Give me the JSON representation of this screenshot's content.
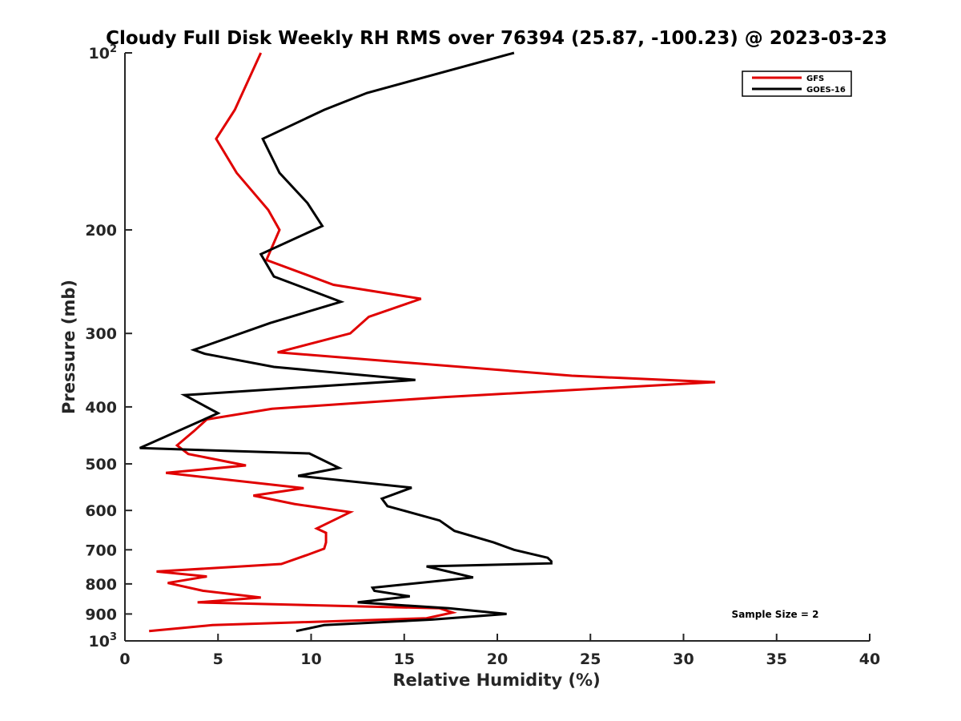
{
  "chart_data": {
    "type": "line",
    "title": "Cloudy Full Disk Weekly RH RMS over 76394 (25.87, -100.23) @ 2023-03-23",
    "xlabel": "Relative Humidity (%)",
    "ylabel": "Pressure (mb)",
    "xlim": [
      0,
      40
    ],
    "ylim": [
      1000,
      100
    ],
    "yscale": "log",
    "y_reversed": true,
    "x_ticks": [
      "0",
      "5",
      "10",
      "15",
      "20",
      "25",
      "30",
      "35",
      "40"
    ],
    "y_ticks": [
      {
        "value": 100,
        "label": "10",
        "sup": "2"
      },
      {
        "value": 200,
        "label": "200",
        "sup": ""
      },
      {
        "value": 300,
        "label": "300",
        "sup": ""
      },
      {
        "value": 400,
        "label": "400",
        "sup": ""
      },
      {
        "value": 500,
        "label": "500",
        "sup": ""
      },
      {
        "value": 600,
        "label": "600",
        "sup": ""
      },
      {
        "value": 700,
        "label": "700",
        "sup": ""
      },
      {
        "value": 800,
        "label": "800",
        "sup": ""
      },
      {
        "value": 900,
        "label": "900",
        "sup": ""
      },
      {
        "value": 1000,
        "label": "10",
        "sup": "3"
      }
    ],
    "grid": false,
    "legend_position": "top-right",
    "annotation": "Sample Size = 2",
    "series": [
      {
        "name": "GFS",
        "color": "#e00000",
        "points": [
          [
            7.3,
            100
          ],
          [
            5.9,
            125
          ],
          [
            4.9,
            140
          ],
          [
            6.0,
            160
          ],
          [
            7.7,
            185
          ],
          [
            8.3,
            200
          ],
          [
            7.6,
            225
          ],
          [
            11.2,
            248
          ],
          [
            15.9,
            262
          ],
          [
            13.1,
            281
          ],
          [
            12.1,
            300
          ],
          [
            8.2,
            323
          ],
          [
            24.0,
            354
          ],
          [
            31.7,
            363
          ],
          [
            17.1,
            385
          ],
          [
            7.9,
            403
          ],
          [
            4.4,
            420
          ],
          [
            3.7,
            440
          ],
          [
            2.8,
            465
          ],
          [
            3.4,
            481
          ],
          [
            6.5,
            503
          ],
          [
            2.2,
            518
          ],
          [
            9.6,
            550
          ],
          [
            6.9,
            566
          ],
          [
            9.1,
            585
          ],
          [
            12.1,
            604
          ],
          [
            10.3,
            644
          ],
          [
            10.8,
            655
          ],
          [
            10.8,
            680
          ],
          [
            10.7,
            697
          ],
          [
            9.8,
            714
          ],
          [
            8.4,
            740
          ],
          [
            1.7,
            762
          ],
          [
            4.4,
            777
          ],
          [
            2.3,
            797
          ],
          [
            4.2,
            822
          ],
          [
            7.3,
            844
          ],
          [
            3.9,
            860
          ],
          [
            16.9,
            880
          ],
          [
            17.6,
            895
          ],
          [
            16.2,
            915
          ],
          [
            4.7,
            940
          ],
          [
            1.3,
            962
          ]
        ]
      },
      {
        "name": "GOES-16",
        "color": "#000000",
        "points": [
          [
            20.9,
            100
          ],
          [
            13.0,
            117
          ],
          [
            10.7,
            125
          ],
          [
            7.4,
            140
          ],
          [
            8.3,
            160
          ],
          [
            9.8,
            180
          ],
          [
            10.6,
            197
          ],
          [
            7.3,
            220
          ],
          [
            8.0,
            240
          ],
          [
            11.6,
            265
          ],
          [
            7.8,
            288
          ],
          [
            3.7,
            320
          ],
          [
            4.3,
            325
          ],
          [
            8.0,
            342
          ],
          [
            15.6,
            360
          ],
          [
            3.2,
            382
          ],
          [
            5.0,
            410
          ],
          [
            0.8,
            470
          ],
          [
            9.9,
            480
          ],
          [
            11.5,
            508
          ],
          [
            9.3,
            524
          ],
          [
            15.4,
            549
          ],
          [
            13.8,
            573
          ],
          [
            14.1,
            590
          ],
          [
            16.9,
            624
          ],
          [
            17.7,
            650
          ],
          [
            19.8,
            680
          ],
          [
            20.9,
            700
          ],
          [
            22.7,
            722
          ],
          [
            22.9,
            732
          ],
          [
            22.9,
            738
          ],
          [
            16.2,
            747
          ],
          [
            18.7,
            780
          ],
          [
            13.3,
            812
          ],
          [
            13.4,
            822
          ],
          [
            15.3,
            840
          ],
          [
            12.5,
            860
          ],
          [
            17.4,
            880
          ],
          [
            20.5,
            900
          ],
          [
            16.5,
            920
          ],
          [
            10.7,
            940
          ],
          [
            9.2,
            962
          ]
        ]
      }
    ]
  }
}
